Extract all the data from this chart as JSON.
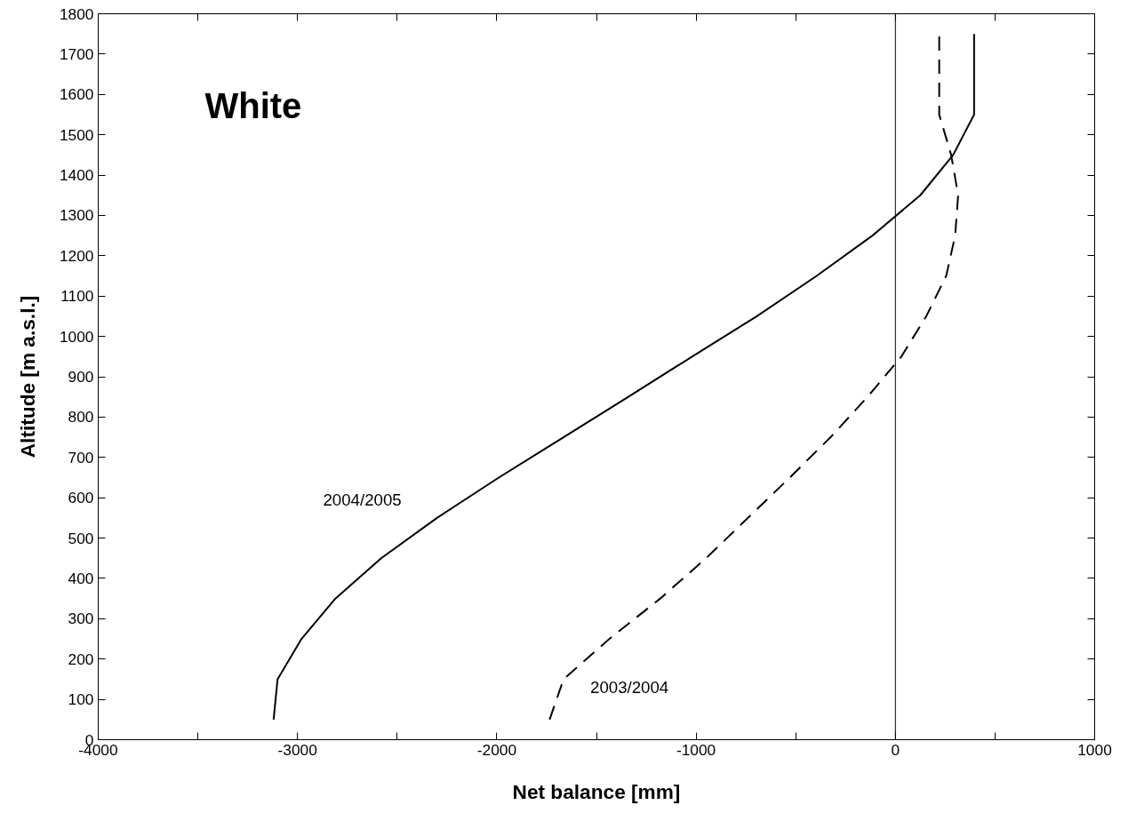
{
  "chart_data": {
    "type": "line",
    "xlabel": "Net balance [mm]",
    "ylabel": "Altitude [m a.s.l.]",
    "annotations": [
      "White"
    ],
    "xlim": [
      -4000,
      1000
    ],
    "xticks": [
      -4000,
      {
        "value": -3500,
        "label": null
      },
      -3000,
      {
        "value": -2500,
        "label": null
      },
      -2000,
      {
        "value": -1500,
        "label": null
      },
      -1000,
      {
        "value": -500,
        "label": null
      },
      0,
      {
        "value": 500,
        "label": null
      },
      1000
    ],
    "ylim": [
      0,
      1800
    ],
    "yticks": [
      0,
      100,
      200,
      300,
      400,
      500,
      600,
      700,
      800,
      900,
      1000,
      1100,
      1200,
      1300,
      1400,
      1500,
      1600,
      1700,
      1800
    ],
    "series": [
      {
        "name": "2004/2005",
        "color": "#000000",
        "line_style": "solid",
        "x": [
          -3120,
          -3100,
          -2980,
          -2810,
          -2580,
          -2300,
          -1990,
          -1665,
          -1340,
          -1020,
          -695,
          -395,
          -115,
          125,
          290,
          395,
          395,
          395
        ],
        "values": [
          50,
          150,
          250,
          350,
          450,
          550,
          650,
          750,
          850,
          950,
          1050,
          1150,
          1250,
          1350,
          1450,
          1550,
          1650,
          1750
        ]
      },
      {
        "name": "2003/2004",
        "color": "#000000",
        "line_style": "dashed",
        "x": [
          -1735,
          -1665,
          -1435,
          -1180,
          -950,
          -740,
          -530,
          -325,
          -140,
          30,
          155,
          255,
          300,
          315,
          280,
          220,
          220,
          220
        ],
        "values": [
          50,
          150,
          250,
          350,
          450,
          550,
          650,
          750,
          850,
          950,
          1050,
          1150,
          1250,
          1350,
          1450,
          1550,
          1650,
          1750
        ]
      }
    ],
    "ref_lines": [
      {
        "axis": "x",
        "value": 0,
        "label": null,
        "color": "#000000"
      }
    ],
    "grid": false,
    "marker": "none"
  }
}
